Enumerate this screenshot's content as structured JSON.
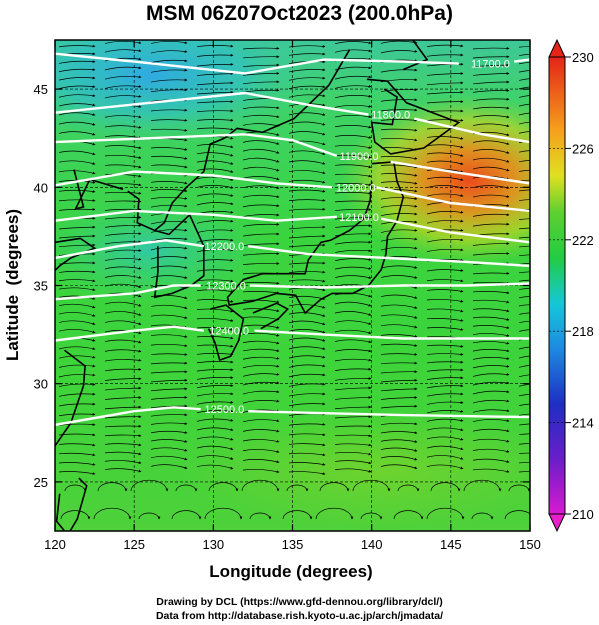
{
  "chart_data": {
    "type": "heatmap",
    "title": "MSM 06Z07Oct2023 (200.0hPa)",
    "xlabel": "Longitude (degrees)",
    "ylabel": "Latitude  (degrees)",
    "xlim": [
      120,
      150
    ],
    "ylim": [
      22.5,
      47.5
    ],
    "xticks": [
      120,
      125,
      130,
      135,
      140,
      145,
      150
    ],
    "yticks": [
      25,
      30,
      35,
      40,
      45
    ],
    "colorbar": {
      "ticks": [
        210,
        214,
        218,
        222,
        226,
        230
      ],
      "range": [
        210,
        230
      ]
    },
    "contours": [
      {
        "label": "11700.0",
        "lon": 147.5,
        "lat": 46.3
      },
      {
        "label": "11800.0",
        "lon": 141.2,
        "lat": 43.7
      },
      {
        "label": "11900.0",
        "lon": 139.2,
        "lat": 41.6
      },
      {
        "label": "12000.0",
        "lon": 139.0,
        "lat": 40.0
      },
      {
        "label": "12100.0",
        "lon": 139.2,
        "lat": 38.5
      },
      {
        "label": "12200.0",
        "lon": 130.7,
        "lat": 37.0
      },
      {
        "label": "12300.0",
        "lon": 130.8,
        "lat": 35.0
      },
      {
        "label": "12400.0",
        "lon": 131.0,
        "lat": 32.7
      },
      {
        "label": "12500.0",
        "lon": 130.7,
        "lat": 28.7
      }
    ],
    "temperature_field_note_colors": {
      "cold": "#29b5e8",
      "mid": "#3ad13a",
      "warm": "#f07a1a"
    },
    "colorbar_colors": [
      "#e81ec8",
      "#2030c8",
      "#10c0e8",
      "#22cc33",
      "#e6e61e",
      "#f5881a",
      "#e83018"
    ]
  },
  "credits": {
    "line1": "Drawing by DCL (https://www.gfd-dennou.org/library/dcl/)",
    "line2": "Data from http://database.rish.kyoto-u.ac.jp/arch/jmadata/"
  }
}
